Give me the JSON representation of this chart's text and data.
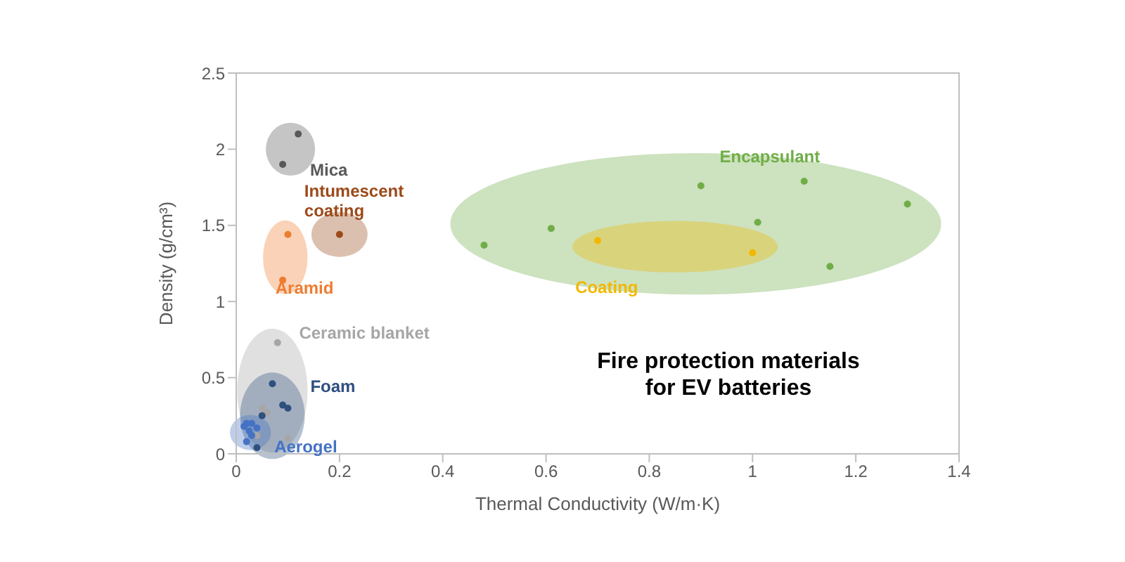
{
  "chart_data": {
    "type": "scatter",
    "title": "Fire protection materials for EV batteries",
    "xlabel": "Thermal Conductivity (W/m·K)",
    "ylabel": "Density (g/cm³)",
    "xlim": [
      0,
      1.4
    ],
    "xticks": [
      0,
      0.2,
      0.4,
      0.6,
      0.8,
      1,
      1.2,
      1.4
    ],
    "ylim": [
      0,
      2.5
    ],
    "yticks": [
      0,
      0.5,
      1,
      1.5,
      2,
      2.5
    ],
    "grid": false,
    "legend": false,
    "marker": "circle",
    "series": [
      {
        "name": "Mica",
        "color": "#595959",
        "x": [
          0.12,
          0.09
        ],
        "values": [
          2.1,
          1.9
        ]
      },
      {
        "name": "Intumescent coating",
        "color": "#9c4a1a",
        "x": [
          0.2
        ],
        "values": [
          1.44
        ]
      },
      {
        "name": "Aramid",
        "color": "#ed7d31",
        "x": [
          0.1,
          0.09
        ],
        "values": [
          1.44,
          1.14
        ]
      },
      {
        "name": "Ceramic blanket",
        "color": "#a6a6a6",
        "x": [
          0.08,
          0.05,
          0.06,
          0.1,
          0.04
        ],
        "values": [
          0.73,
          0.3,
          0.27,
          0.1,
          0.12
        ]
      },
      {
        "name": "Foam",
        "color": "#2f4f7f",
        "x": [
          0.07,
          0.09,
          0.1,
          0.05,
          0.04
        ],
        "values": [
          0.46,
          0.32,
          0.3,
          0.25,
          0.04
        ]
      },
      {
        "name": "Aerogel",
        "color": "#4472c4",
        "x": [
          0.015,
          0.02,
          0.025,
          0.03,
          0.02,
          0.04,
          0.03
        ],
        "values": [
          0.18,
          0.2,
          0.15,
          0.12,
          0.08,
          0.17,
          0.2
        ]
      },
      {
        "name": "Encapsulant",
        "color": "#70ad47",
        "x": [
          0.48,
          0.61,
          0.9,
          1.01,
          1.1,
          1.3,
          1.15
        ],
        "values": [
          1.37,
          1.48,
          1.76,
          1.52,
          1.79,
          1.64,
          1.23
        ]
      },
      {
        "name": "Coating",
        "color": "#f2b800",
        "x": [
          0.7,
          1.0
        ],
        "values": [
          1.4,
          1.32
        ]
      }
    ]
  }
}
